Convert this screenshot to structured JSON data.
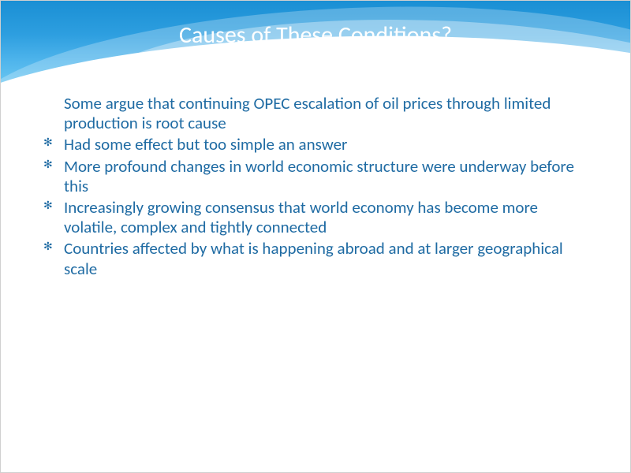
{
  "slide": {
    "title": "Causes of These Conditions?",
    "title_color": "#ffffff",
    "title_fontsize": 30,
    "header_gradient_top": "#1a8fd4",
    "header_gradient_bottom": "#6fc9f2",
    "text_color": "#1f6ba3",
    "body_fontsize": 21,
    "background": "#ffffff",
    "bullets": [
      {
        "text": "Some argue that continuing OPEC escalation of oil prices through limited production is root cause",
        "show_marker": false
      },
      {
        "text": "Had some effect but too simple an answer",
        "show_marker": true
      },
      {
        "text": "More profound changes in world economic structure  were underway before this",
        "show_marker": true
      },
      {
        "text": "Increasingly growing consensus that world economy has become more volatile, complex and tightly connected",
        "show_marker": true
      },
      {
        "text": "Countries affected by what is happening abroad and at larger geographical scale",
        "show_marker": true
      }
    ]
  }
}
